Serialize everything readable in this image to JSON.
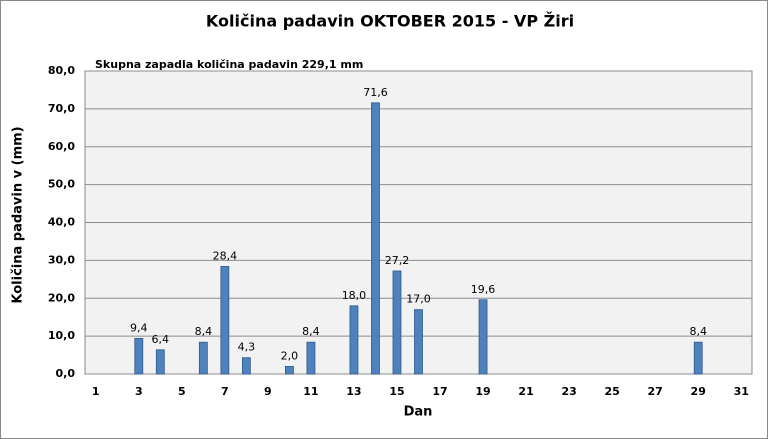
{
  "chart_data": {
    "type": "bar",
    "title": "Količina padavin  OKTOBER  2015 - VP Žiri",
    "annotation": "Skupna zapadla količina padavin 229,1 mm",
    "xlabel": "Dan",
    "ylabel": "Količina padavin v  (mm)",
    "categories": [
      "1",
      null,
      "3",
      null,
      "5",
      null,
      "7",
      null,
      "9",
      null,
      "11",
      null,
      "13",
      null,
      "15",
      null,
      "17",
      null,
      "19",
      null,
      "21",
      null,
      "23",
      null,
      "25",
      null,
      "27",
      null,
      "29",
      null,
      "31"
    ],
    "values": [
      null,
      null,
      9.4,
      6.4,
      null,
      8.4,
      28.4,
      4.3,
      null,
      2.0,
      8.4,
      null,
      18.0,
      71.6,
      27.2,
      17.0,
      null,
      null,
      19.6,
      null,
      null,
      null,
      null,
      null,
      null,
      null,
      null,
      null,
      8.4,
      null,
      null
    ],
    "value_labels": [
      null,
      null,
      "9,4",
      "6,4",
      null,
      "8,4",
      "28,4",
      "4,3",
      null,
      "2,0",
      "8,4",
      null,
      "18,0",
      "71,6",
      "27,2",
      "17,0",
      null,
      null,
      "19,6",
      null,
      null,
      null,
      null,
      null,
      null,
      null,
      null,
      null,
      "8,4",
      null,
      null
    ],
    "color": "#4f81bd",
    "ylim": [
      0,
      80
    ],
    "yticks": [
      {
        "value": 0,
        "label": "0,0"
      },
      {
        "value": 10,
        "label": "10,0"
      },
      {
        "value": 20,
        "label": "20,0"
      },
      {
        "value": 30,
        "label": "30,0"
      },
      {
        "value": 40,
        "label": "40,0"
      },
      {
        "value": 50,
        "label": "50,0"
      },
      {
        "value": 60,
        "label": "60,0"
      },
      {
        "value": 70,
        "label": "70,0"
      },
      {
        "value": 80,
        "label": "80,0"
      }
    ],
    "grid": true
  }
}
